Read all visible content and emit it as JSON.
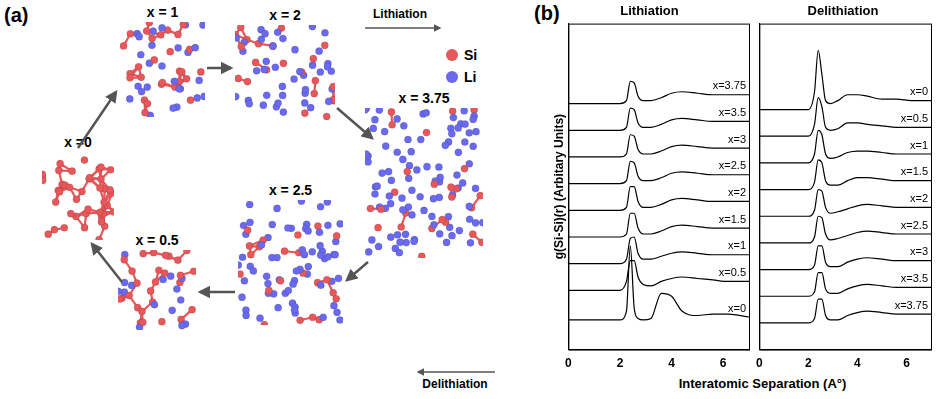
{
  "panel_a": {
    "letter": "(a)",
    "lithiation": "Lithiation",
    "delithiation": "Delithiation",
    "legend": [
      {
        "label": "Si",
        "color": "#e8585a"
      },
      {
        "label": "Li",
        "color": "#6a6af0"
      }
    ],
    "snapshots": [
      {
        "x": 0,
        "label": "x =0"
      },
      {
        "x": 1,
        "label": "x = 1"
      },
      {
        "x": 2,
        "label": "x = 2"
      },
      {
        "x": 3.75,
        "label": "x = 3.75"
      },
      {
        "x": 2.5,
        "label": "x = 2.5"
      },
      {
        "x": 0.5,
        "label": "x = 0.5"
      }
    ]
  },
  "panel_b": {
    "letter": "(b)",
    "x_label": "Interatomic Separation (A°)",
    "y_label": "g(Si-Si)(r) (Arbitary Units)"
  },
  "chart_data": [
    {
      "type": "line",
      "title": "Lithiation",
      "x": [
        0,
        2.0,
        2.25,
        2.4,
        2.55,
        2.7,
        2.9,
        3.2,
        3.6,
        4.0,
        4.4,
        5.0,
        5.6,
        6.2,
        7.0
      ],
      "xlim": [
        0,
        7
      ],
      "xticks": [
        0,
        2,
        4,
        6
      ],
      "ylim": [
        0,
        11
      ],
      "tick_labels": "x",
      "grid": false,
      "series": [
        {
          "name": "x=0",
          "color": "#000000",
          "values": [
            1.0,
            1.0,
            1.3,
            3.5,
            1.4,
            1.05,
            1.0,
            1.05,
            1.9,
            1.8,
            1.3,
            1.15,
            1.2,
            1.2,
            1.1
          ]
        },
        {
          "name": "x=0.5",
          "color": "#000000",
          "values": [
            2.0,
            2.0,
            2.3,
            3.0,
            3.0,
            2.45,
            2.2,
            2.15,
            2.3,
            2.4,
            2.45,
            2.4,
            2.35,
            2.3,
            2.3
          ]
        },
        {
          "name": "x=1",
          "color": "#000000",
          "values": [
            2.9,
            2.9,
            3.05,
            3.75,
            3.8,
            3.25,
            3.05,
            3.05,
            3.15,
            3.25,
            3.3,
            3.25,
            3.2,
            3.2,
            3.2
          ]
        },
        {
          "name": "x=1.5",
          "color": "#000000",
          "values": [
            3.8,
            3.8,
            3.9,
            4.6,
            4.6,
            4.1,
            3.9,
            3.9,
            4.0,
            4.15,
            4.2,
            4.15,
            4.1,
            4.1,
            4.1
          ]
        },
        {
          "name": "x=2",
          "color": "#000000",
          "values": [
            4.7,
            4.7,
            4.8,
            5.5,
            5.5,
            5.0,
            4.8,
            4.8,
            4.9,
            5.05,
            5.1,
            5.05,
            5.0,
            5.0,
            5.0
          ]
        },
        {
          "name": "x=2.5",
          "color": "#000000",
          "values": [
            5.6,
            5.6,
            5.7,
            6.35,
            6.3,
            5.85,
            5.7,
            5.7,
            5.8,
            5.95,
            6.0,
            5.95,
            5.9,
            5.9,
            5.9
          ]
        },
        {
          "name": "x=3",
          "color": "#000000",
          "values": [
            6.5,
            6.5,
            6.6,
            7.25,
            7.2,
            6.75,
            6.6,
            6.6,
            6.7,
            6.85,
            6.9,
            6.85,
            6.8,
            6.8,
            6.8
          ]
        },
        {
          "name": "x=3.5",
          "color": "#000000",
          "values": [
            7.4,
            7.4,
            7.5,
            8.15,
            8.1,
            7.65,
            7.5,
            7.5,
            7.6,
            7.75,
            7.8,
            7.75,
            7.7,
            7.7,
            7.7
          ]
        },
        {
          "name": "x=3.75",
          "color": "#000000",
          "values": [
            8.3,
            8.3,
            8.4,
            9.05,
            9.0,
            8.55,
            8.4,
            8.4,
            8.5,
            8.65,
            8.7,
            8.65,
            8.6,
            8.6,
            8.6
          ]
        }
      ]
    },
    {
      "type": "line",
      "title": "Delithiation",
      "x": [
        0,
        2.0,
        2.25,
        2.4,
        2.55,
        2.7,
        2.9,
        3.2,
        3.6,
        4.0,
        4.4,
        5.0,
        5.6,
        6.2,
        7.0
      ],
      "xlim": [
        0,
        7
      ],
      "xticks": [
        0,
        2,
        4,
        6
      ],
      "ylim": [
        0,
        11
      ],
      "tick_labels": "x",
      "grid": false,
      "series": [
        {
          "name": "x=0",
          "color": "#000000",
          "values": [
            8.1,
            8.1,
            8.7,
            10.1,
            9.3,
            8.4,
            8.3,
            8.4,
            8.6,
            8.6,
            8.55,
            8.45,
            8.45,
            8.4,
            8.4
          ]
        },
        {
          "name": "x=0.5",
          "color": "#000000",
          "values": [
            7.2,
            7.2,
            7.6,
            8.5,
            8.2,
            7.5,
            7.4,
            7.45,
            7.65,
            7.65,
            7.6,
            7.55,
            7.5,
            7.5,
            7.5
          ]
        },
        {
          "name": "x=1",
          "color": "#000000",
          "values": [
            6.3,
            6.3,
            6.6,
            7.4,
            7.25,
            6.6,
            6.45,
            6.5,
            6.65,
            6.7,
            6.7,
            6.65,
            6.6,
            6.6,
            6.6
          ]
        },
        {
          "name": "x=1.5",
          "color": "#000000",
          "values": [
            5.4,
            5.4,
            5.65,
            6.4,
            6.3,
            5.7,
            5.55,
            5.55,
            5.7,
            5.8,
            5.8,
            5.75,
            5.7,
            5.7,
            5.7
          ]
        },
        {
          "name": "x=2",
          "color": "#000000",
          "values": [
            4.5,
            4.5,
            4.7,
            5.4,
            5.35,
            4.8,
            4.6,
            4.65,
            4.75,
            4.85,
            4.9,
            4.85,
            4.8,
            4.8,
            4.8
          ]
        },
        {
          "name": "x=2.5",
          "color": "#000000",
          "values": [
            3.6,
            3.6,
            3.8,
            4.5,
            4.45,
            3.9,
            3.7,
            3.75,
            3.85,
            3.95,
            4.0,
            3.95,
            3.9,
            3.9,
            3.9
          ]
        },
        {
          "name": "x=3",
          "color": "#000000",
          "values": [
            2.7,
            2.7,
            2.85,
            3.5,
            3.5,
            2.95,
            2.8,
            2.8,
            2.95,
            3.05,
            3.1,
            3.05,
            3.0,
            3.0,
            3.0
          ]
        },
        {
          "name": "x=3.5",
          "color": "#000000",
          "values": [
            1.8,
            1.8,
            1.95,
            2.6,
            2.6,
            2.05,
            1.9,
            1.9,
            2.05,
            2.15,
            2.2,
            2.15,
            2.1,
            2.1,
            2.1
          ]
        },
        {
          "name": "x=3.75",
          "color": "#000000",
          "values": [
            0.9,
            0.9,
            1.05,
            1.7,
            1.7,
            1.15,
            1.0,
            1.0,
            1.15,
            1.25,
            1.3,
            1.25,
            1.2,
            1.2,
            1.2
          ]
        }
      ]
    }
  ]
}
